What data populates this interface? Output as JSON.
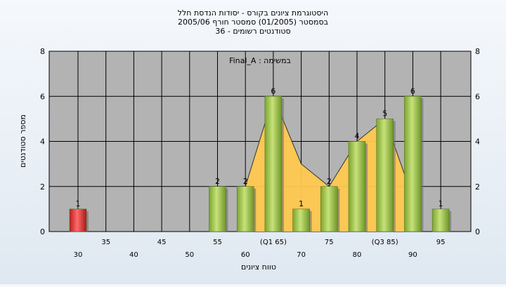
{
  "title_lines": [
    "היסטוגרמת ציונים בקורס - יסודות הנדסת חלל",
    "בסמסטר  (01/2005)  סמסטר חורף 2005/06",
    "סטודנטים רשומים - 36"
  ],
  "chart_data": {
    "type": "bar",
    "annotation": "במשימה : Final_A",
    "xlabel": "טווח ציונים",
    "ylabel": "מספר סטודנטים",
    "ylim": [
      0,
      8
    ],
    "y_ticks": [
      0,
      2,
      4,
      6,
      8
    ],
    "categories_lower": [
      "30",
      "40",
      "50",
      "60",
      "70",
      "80",
      "90"
    ],
    "categories_upper": [
      "35",
      "45",
      "55",
      "(Q1 65)",
      "75",
      "(Q3 85)",
      "95"
    ],
    "categories": [
      "30",
      "35",
      "40",
      "45",
      "50",
      "55",
      "60",
      "(Q1 65)",
      "70",
      "75",
      "80",
      "(Q3 85)",
      "90",
      "95"
    ],
    "series": [
      {
        "values": [
          1,
          0,
          0,
          0,
          0,
          2,
          2,
          6,
          1,
          2,
          4,
          5,
          6,
          1
        ]
      }
    ],
    "bar_colors": [
      "#d93030",
      null,
      null,
      null,
      null,
      "#8fbc3a",
      "#8fbc3a",
      "#8fbc3a",
      "#8fbc3a",
      "#8fbc3a",
      "#8fbc3a",
      "#8fbc3a",
      "#8fbc3a",
      "#8fbc3a"
    ],
    "overlay_area": {
      "x_index": [
        6,
        7,
        8,
        9,
        10,
        11,
        12
      ],
      "values": [
        2,
        6,
        3,
        2,
        4,
        5,
        1.5
      ],
      "color": "#ffc850"
    },
    "grid": true,
    "plot_background": "#b3b3b3"
  }
}
